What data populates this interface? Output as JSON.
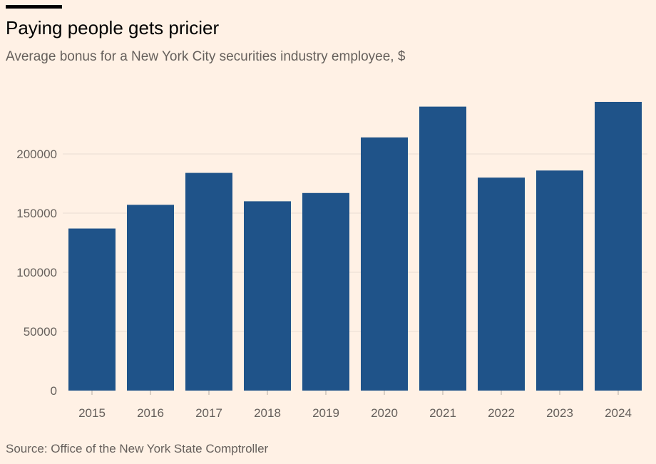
{
  "header": {
    "title": "Paying people gets pricier",
    "subtitle": "Average bonus for a New York City securities industry employee, $"
  },
  "footer": {
    "source": "Source: Office of the New York State Comptroller"
  },
  "colors": {
    "background": "#fff1e5",
    "bar": "#1f5389",
    "gridline": "#e8ddd3",
    "text_muted": "#66605c"
  },
  "chart_data": {
    "type": "bar",
    "title": "Paying people gets pricier",
    "subtitle": "Average bonus for a New York City securities industry employee, $",
    "xlabel": "",
    "ylabel": "",
    "categories": [
      "2015",
      "2016",
      "2017",
      "2018",
      "2019",
      "2020",
      "2021",
      "2022",
      "2023",
      "2024"
    ],
    "values": [
      137000,
      157000,
      184000,
      160000,
      167000,
      214000,
      240000,
      180000,
      186000,
      244000
    ],
    "yticks": [
      0,
      50000,
      100000,
      150000,
      200000
    ],
    "ylim": [
      0,
      250000
    ],
    "grid": true,
    "legend": "none"
  }
}
